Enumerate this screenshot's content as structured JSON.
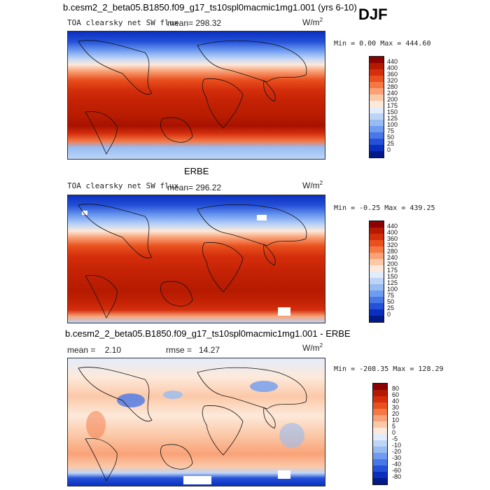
{
  "season": "DJF",
  "panels": [
    {
      "title": "b.cesm2_2_beta05.B1850.f09_g17_ts10spl0macmic1mg1.001 (yrs 6-10)",
      "variable": "TOA clearsky net SW flux",
      "stat": "mean=  298.32",
      "units": "W/m",
      "units_sup": "2",
      "minmax": "Min =   0.00 Max = 444.60",
      "colorbar": {
        "labels": [
          "440",
          "400",
          "360",
          "320",
          "280",
          "240",
          "200",
          "175",
          "150",
          "125",
          "100",
          "75",
          "50",
          "25",
          "0"
        ],
        "colors": [
          "#8b0000",
          "#b51a00",
          "#d42e0c",
          "#e9501e",
          "#f47744",
          "#f9a277",
          "#fbc9a8",
          "#fde9da",
          "#e2ecfb",
          "#bdd4f7",
          "#98bcf2",
          "#6f9cf0",
          "#4877e8",
          "#2451d8",
          "#0a2fbf",
          "#001a8a"
        ]
      }
    },
    {
      "title": "ERBE",
      "variable": "TOA clearsky net SW flux",
      "stat": "mean= 296.22",
      "units": "W/m",
      "units_sup": "2",
      "minmax": "Min =  -0.25 Max = 439.25",
      "colorbar": {
        "labels": [
          "440",
          "400",
          "360",
          "320",
          "280",
          "240",
          "200",
          "175",
          "150",
          "125",
          "100",
          "75",
          "50",
          "25",
          "0"
        ],
        "colors": [
          "#8b0000",
          "#b51a00",
          "#d42e0c",
          "#e9501e",
          "#f47744",
          "#f9a277",
          "#fbc9a8",
          "#fde9da",
          "#e2ecfb",
          "#bdd4f7",
          "#98bcf2",
          "#6f9cf0",
          "#4877e8",
          "#2451d8",
          "#0a2fbf",
          "#001a8a"
        ]
      }
    },
    {
      "title": "b.cesm2_2_beta05.B1850.f09_g17_ts10spl0macmic1mg1.001 - ERBE",
      "stat_mean": "mean =    2.10",
      "stat_rmse": "rmse =   14.27",
      "units": "W/m",
      "units_sup": "2",
      "minmax": "Min = -208.35 Max = 128.29",
      "colorbar": {
        "labels": [
          "80",
          "60",
          "40",
          "30",
          "20",
          "10",
          "5",
          "0",
          "-5",
          "-10",
          "-20",
          "-30",
          "-40",
          "-60",
          "-80"
        ],
        "colors": [
          "#8b0000",
          "#b51a00",
          "#d42e0c",
          "#e9501e",
          "#f47744",
          "#f9a277",
          "#fbc9a8",
          "#fde9da",
          "#e2ecfb",
          "#bdd4f7",
          "#98bcf2",
          "#6f9cf0",
          "#4877e8",
          "#2451d8",
          "#0a2fbf",
          "#001a8a"
        ]
      }
    }
  ]
}
